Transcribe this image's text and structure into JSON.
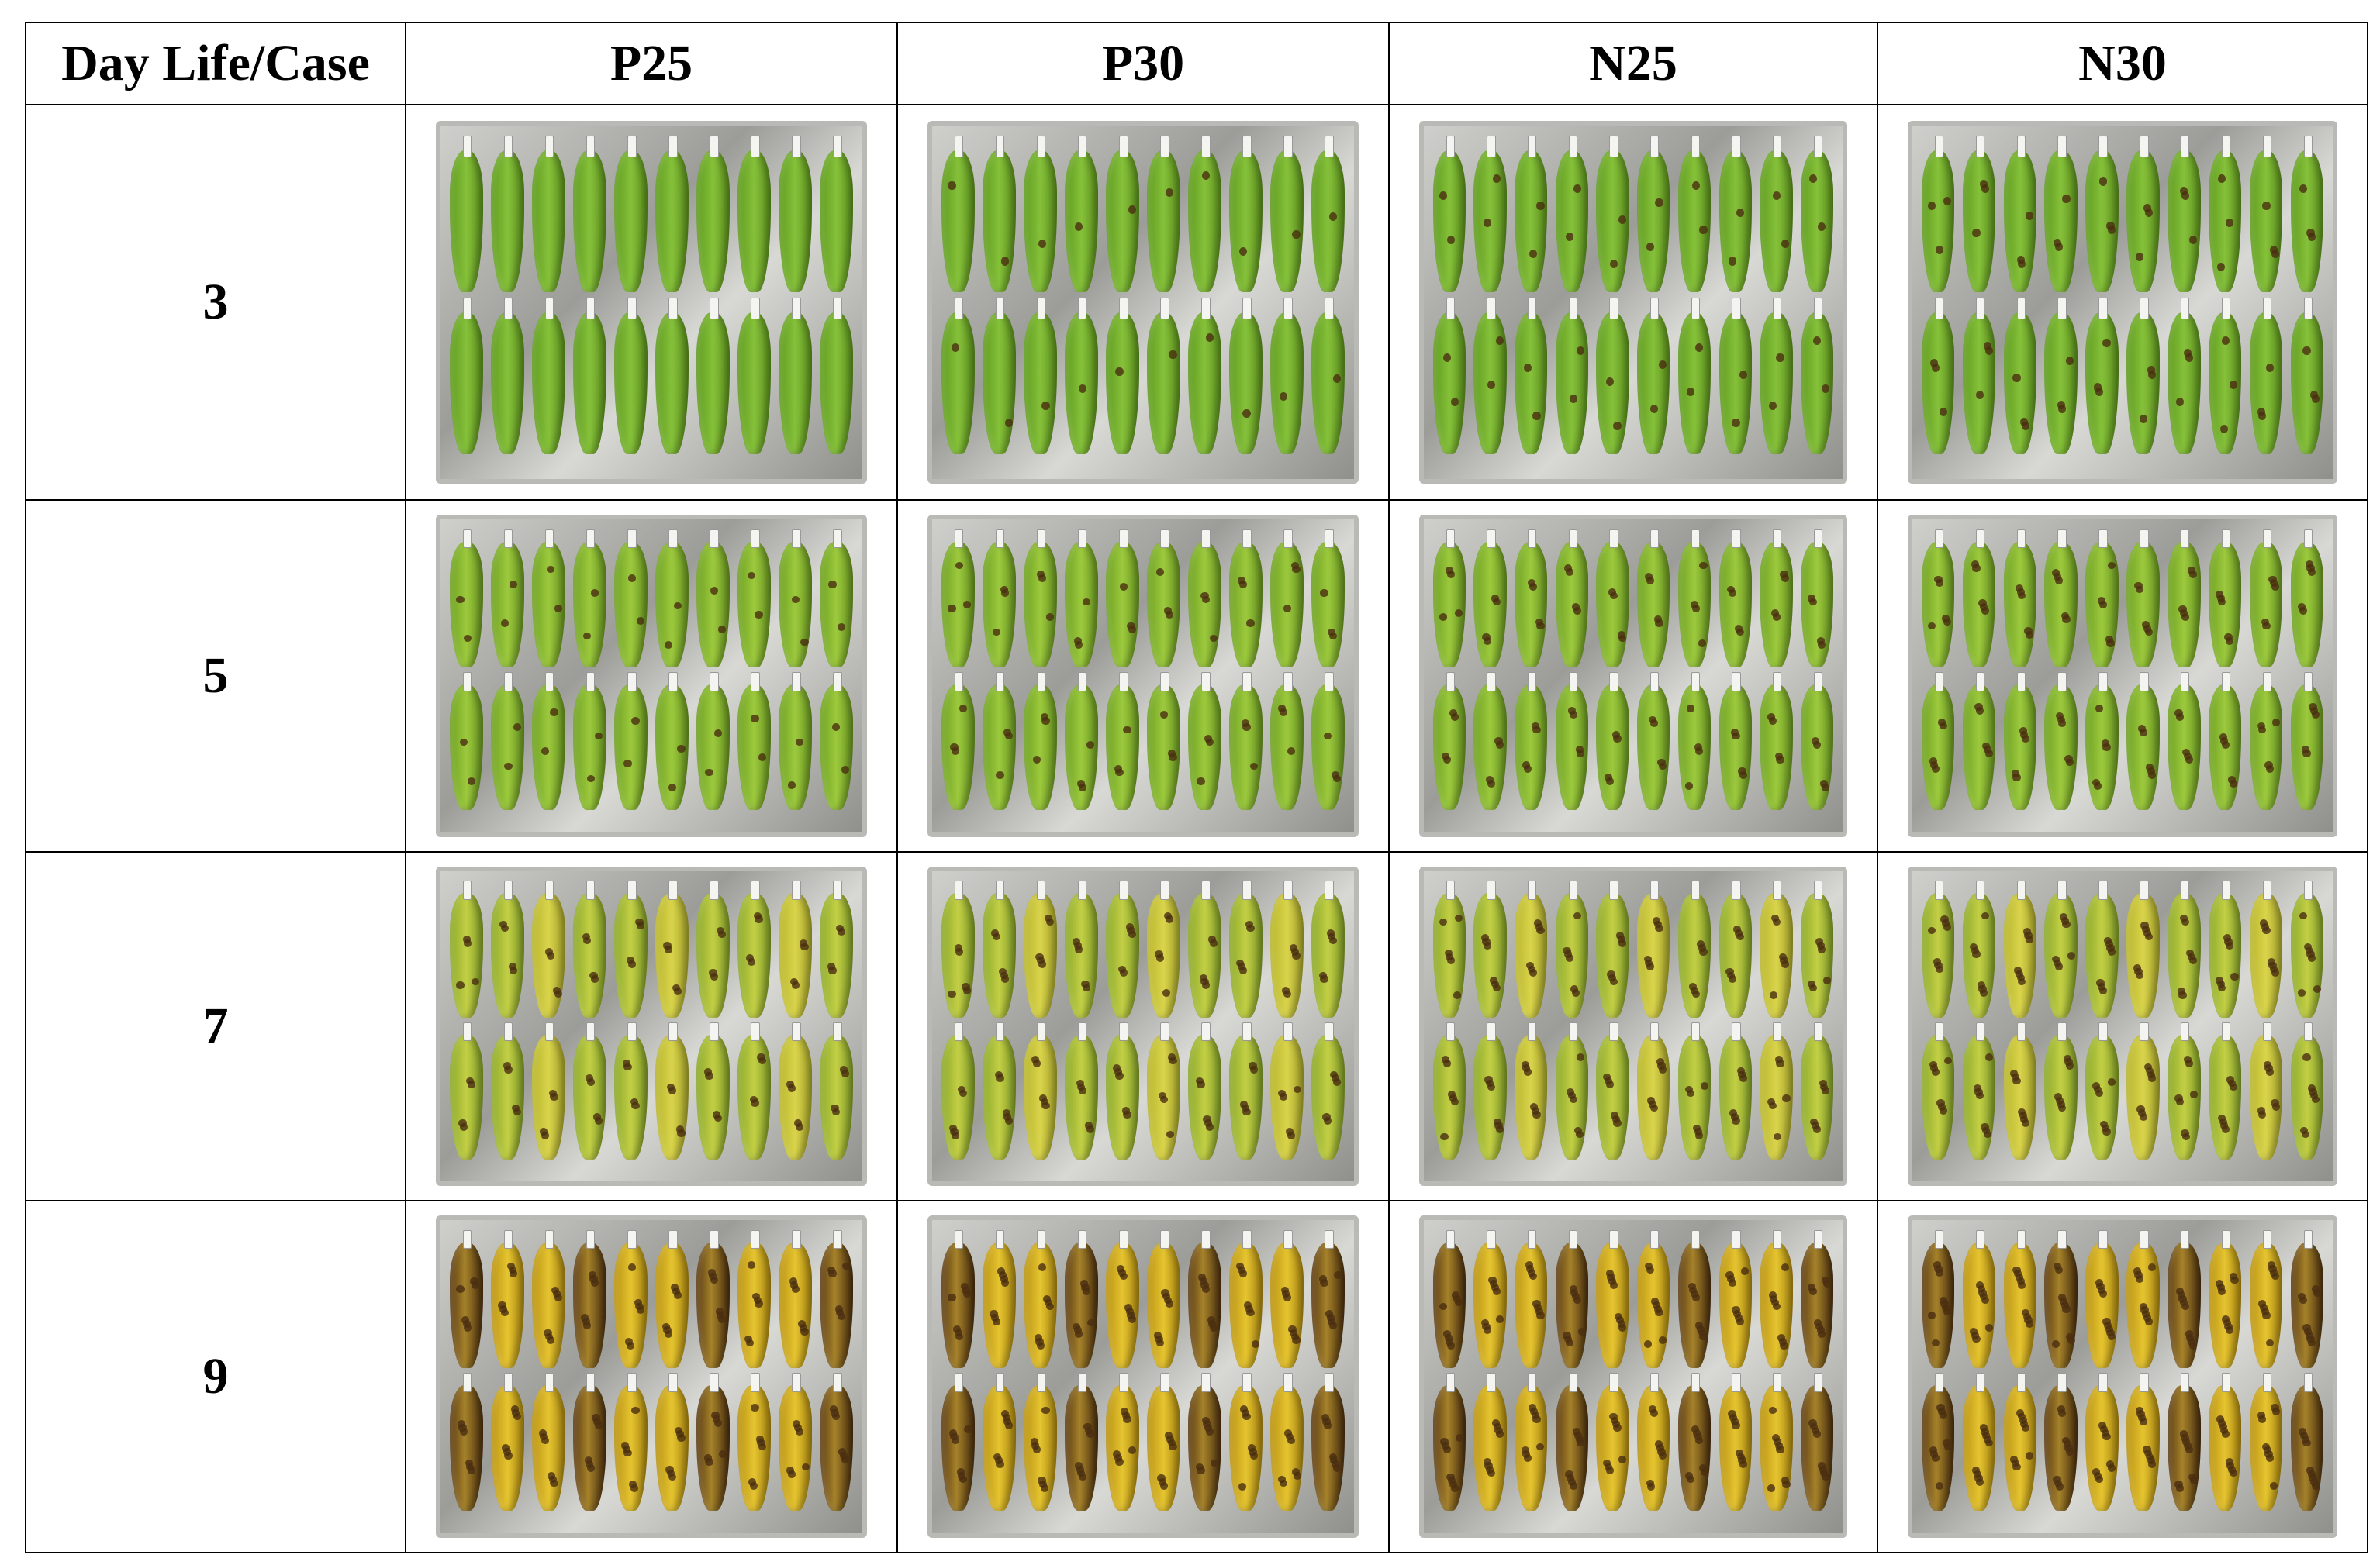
{
  "table": {
    "header": {
      "corner": "Day Life/Case",
      "columns": [
        "P25",
        "P30",
        "N25",
        "N30"
      ]
    },
    "rows": [
      {
        "day": "3"
      },
      {
        "day": "5"
      },
      {
        "day": "7"
      },
      {
        "day": "9"
      }
    ]
  },
  "colors": {
    "border": "#000000",
    "day3_banana": "#86c13a",
    "day5_banana": "#9cc93d",
    "day7_banana": "#c3cf45",
    "day9_banana": "#e5c430",
    "tray": "#b9b9b5"
  }
}
